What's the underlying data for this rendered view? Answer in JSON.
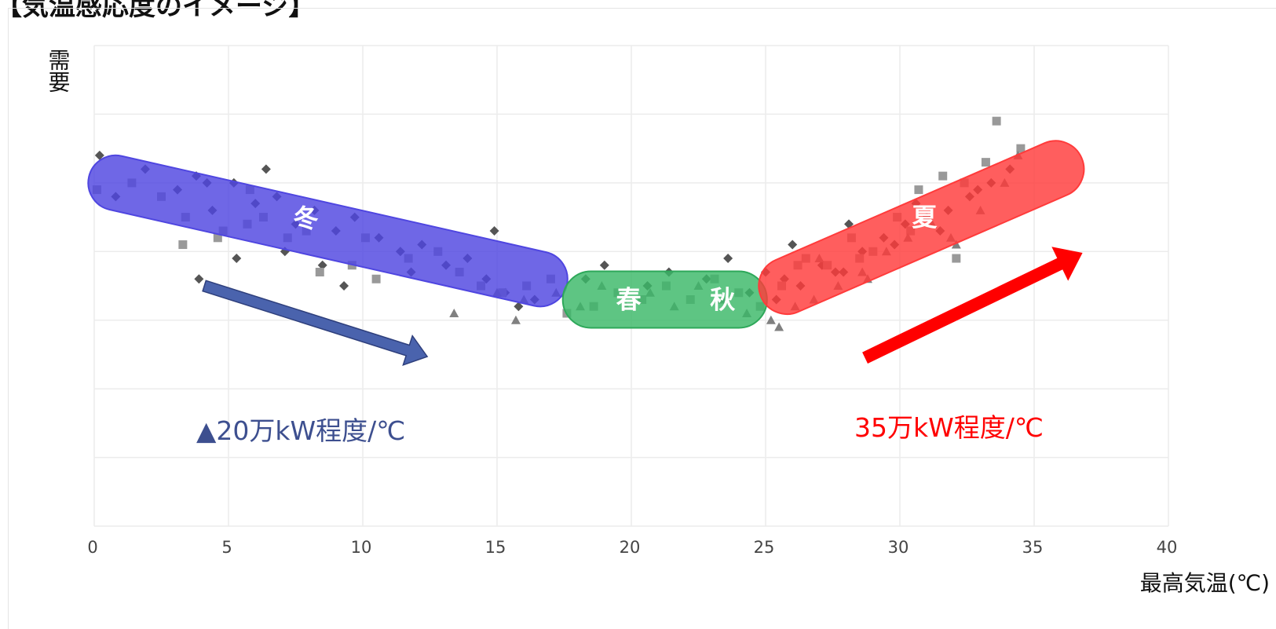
{
  "header": {
    "title": "【気温感応度のイメージ】"
  },
  "chart_data": {
    "type": "scatter",
    "title": "",
    "xlabel": "最高気温(℃)",
    "ylabel": "需要",
    "xlim": [
      0,
      40
    ],
    "ylim": [
      0,
      7
    ],
    "x_ticks": [
      0,
      5,
      10,
      15,
      20,
      25,
      30,
      35,
      40
    ],
    "y_tick_labels_shown": false,
    "grid": true,
    "legend": "none",
    "series": [
      {
        "marker": "diamond",
        "color": "#555555",
        "points": [
          [
            0.2,
            5.4
          ],
          [
            0.8,
            4.8
          ],
          [
            1.9,
            5.2
          ],
          [
            3.1,
            4.9
          ],
          [
            3.8,
            5.1
          ],
          [
            4.4,
            4.6
          ],
          [
            5.2,
            5.0
          ],
          [
            6.0,
            4.7
          ],
          [
            6.8,
            4.8
          ],
          [
            7.5,
            4.4
          ],
          [
            8.2,
            4.6
          ],
          [
            9.0,
            4.3
          ],
          [
            9.7,
            4.5
          ],
          [
            10.6,
            4.2
          ],
          [
            11.4,
            4.0
          ],
          [
            12.2,
            4.1
          ],
          [
            13.1,
            3.8
          ],
          [
            13.9,
            3.9
          ],
          [
            14.6,
            3.6
          ],
          [
            15.3,
            3.4
          ],
          [
            15.8,
            3.2
          ],
          [
            16.4,
            3.3
          ],
          [
            3.9,
            3.6
          ],
          [
            5.3,
            3.9
          ],
          [
            7.1,
            4.0
          ],
          [
            8.5,
            3.8
          ],
          [
            9.3,
            3.5
          ],
          [
            11.8,
            3.7
          ],
          [
            14.9,
            4.3
          ],
          [
            4.2,
            5.0
          ],
          [
            6.4,
            5.2
          ],
          [
            18.3,
            3.6
          ],
          [
            19.0,
            3.8
          ],
          [
            20.6,
            3.5
          ],
          [
            21.4,
            3.7
          ],
          [
            22.8,
            3.6
          ],
          [
            23.6,
            3.9
          ],
          [
            24.4,
            3.4
          ],
          [
            25.0,
            3.7
          ],
          [
            25.7,
            3.6
          ],
          [
            26.3,
            3.5
          ],
          [
            27.1,
            3.8
          ],
          [
            27.9,
            3.7
          ],
          [
            28.6,
            4.0
          ],
          [
            29.4,
            4.2
          ],
          [
            30.2,
            4.4
          ],
          [
            31.0,
            4.5
          ],
          [
            31.8,
            4.6
          ],
          [
            32.6,
            4.8
          ],
          [
            33.4,
            5.0
          ],
          [
            34.1,
            5.2
          ],
          [
            26.0,
            4.1
          ],
          [
            28.1,
            4.4
          ],
          [
            30.6,
            4.7
          ],
          [
            32.9,
            4.9
          ],
          [
            25.4,
            3.3
          ],
          [
            27.6,
            3.7
          ],
          [
            29.8,
            4.1
          ],
          [
            31.5,
            4.3
          ]
        ]
      },
      {
        "marker": "square",
        "color": "#999999",
        "points": [
          [
            0.1,
            4.9
          ],
          [
            1.4,
            5.0
          ],
          [
            2.5,
            4.8
          ],
          [
            3.3,
            4.1
          ],
          [
            4.6,
            4.2
          ],
          [
            5.7,
            4.4
          ],
          [
            6.3,
            4.5
          ],
          [
            7.2,
            4.2
          ],
          [
            8.4,
            3.7
          ],
          [
            9.6,
            3.8
          ],
          [
            10.5,
            3.6
          ],
          [
            11.7,
            3.9
          ],
          [
            12.8,
            4.0
          ],
          [
            13.6,
            3.7
          ],
          [
            14.4,
            3.5
          ],
          [
            15.2,
            3.4
          ],
          [
            16.1,
            3.5
          ],
          [
            17.0,
            3.6
          ],
          [
            17.6,
            3.1
          ],
          [
            18.6,
            3.2
          ],
          [
            19.5,
            3.4
          ],
          [
            20.4,
            3.3
          ],
          [
            21.3,
            3.5
          ],
          [
            22.2,
            3.3
          ],
          [
            23.1,
            3.6
          ],
          [
            24.0,
            3.4
          ],
          [
            24.8,
            3.2
          ],
          [
            25.6,
            3.5
          ],
          [
            26.5,
            3.9
          ],
          [
            27.3,
            3.8
          ],
          [
            28.2,
            4.2
          ],
          [
            29.0,
            4.0
          ],
          [
            29.9,
            4.5
          ],
          [
            30.7,
            4.9
          ],
          [
            31.6,
            5.1
          ],
          [
            32.4,
            5.0
          ],
          [
            33.2,
            5.3
          ],
          [
            33.6,
            5.9
          ],
          [
            34.5,
            5.5
          ],
          [
            32.1,
            3.9
          ],
          [
            26.2,
            3.8
          ],
          [
            28.5,
            3.9
          ],
          [
            30.4,
            4.3
          ],
          [
            4.8,
            4.3
          ],
          [
            3.4,
            4.5
          ],
          [
            5.8,
            4.9
          ],
          [
            7.9,
            4.3
          ],
          [
            10.1,
            4.2
          ]
        ]
      },
      {
        "marker": "triangle",
        "color": "#808080",
        "points": [
          [
            13.4,
            3.1
          ],
          [
            15.0,
            3.4
          ],
          [
            16.0,
            3.3
          ],
          [
            17.2,
            3.4
          ],
          [
            18.1,
            3.2
          ],
          [
            18.9,
            3.5
          ],
          [
            19.8,
            3.2
          ],
          [
            20.7,
            3.4
          ],
          [
            21.6,
            3.2
          ],
          [
            22.5,
            3.5
          ],
          [
            23.4,
            3.3
          ],
          [
            24.3,
            3.1
          ],
          [
            25.2,
            3.0
          ],
          [
            25.5,
            2.9
          ],
          [
            26.1,
            3.2
          ],
          [
            26.8,
            3.3
          ],
          [
            27.7,
            3.5
          ],
          [
            28.6,
            3.7
          ],
          [
            29.5,
            4.0
          ],
          [
            30.3,
            4.2
          ],
          [
            31.2,
            4.4
          ],
          [
            32.1,
            4.1
          ],
          [
            33.0,
            4.6
          ],
          [
            33.9,
            5.0
          ],
          [
            34.4,
            5.4
          ],
          [
            31.9,
            4.2
          ],
          [
            28.8,
            3.6
          ],
          [
            27.0,
            3.9
          ],
          [
            15.7,
            3.0
          ]
        ]
      }
    ],
    "bands": [
      {
        "label": "冬",
        "color": "#4f46e0",
        "x_start": 0.8,
        "y_start": 5.0,
        "x_end": 16.6,
        "y_end": 3.6
      },
      {
        "label": "春",
        "color": "#3ab868",
        "x_start": 18.5,
        "y_start": 3.3
      },
      {
        "label": "秋",
        "color": "#3ab868",
        "x_start": 24.0,
        "y_end": 3.3
      },
      {
        "label": "夏",
        "color": "#ff3b3b",
        "x_start": 25.8,
        "y_start": 3.5,
        "x_end": 35.8,
        "y_end": 5.2
      }
    ],
    "annotations": {
      "winter_slope": "▲20万kW程度/℃",
      "summer_slope": "35万kW程度/℃",
      "winter_color": "#3d4f8f",
      "summer_color": "#ff0000"
    }
  }
}
